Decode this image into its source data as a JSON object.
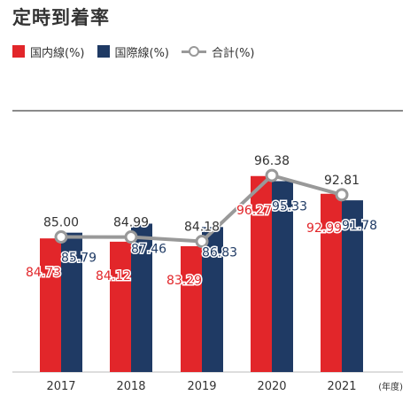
{
  "title": "定時到着率",
  "legend": {
    "domestic": "国内線(%)",
    "international": "国際線(%)",
    "total": "合計(%)"
  },
  "colors": {
    "domestic": "#e2262a",
    "international": "#1f3a64",
    "total": "#999999"
  },
  "unit_label": "(年度)",
  "chart_data": {
    "type": "bar",
    "categories": [
      "2017",
      "2018",
      "2019",
      "2020",
      "2021"
    ],
    "series": [
      {
        "name": "国内線(%)",
        "type": "bar",
        "values": [
          84.73,
          84.12,
          83.29,
          96.27,
          92.99
        ],
        "labels": [
          "84.73",
          "84.12",
          "83.29",
          "96.27",
          "92.99"
        ]
      },
      {
        "name": "国際線(%)",
        "type": "bar",
        "values": [
          85.79,
          87.46,
          86.83,
          95.33,
          91.78
        ],
        "labels": [
          "85.79",
          "87.46",
          "86.83",
          "95.33",
          "91.78"
        ]
      },
      {
        "name": "合計(%)",
        "type": "line",
        "values": [
          85.0,
          84.99,
          84.18,
          96.38,
          92.81
        ],
        "labels": [
          "85.00",
          "84.99",
          "84.18",
          "96.38",
          "92.81"
        ]
      }
    ],
    "ylim": [
      60,
      100
    ],
    "grid": false,
    "legend_position": "top-left"
  }
}
